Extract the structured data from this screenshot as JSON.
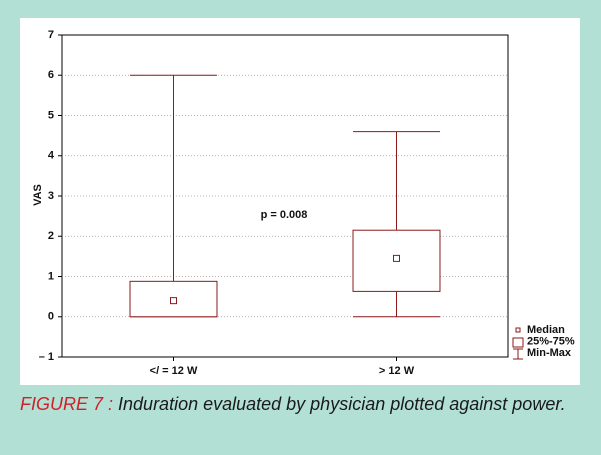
{
  "chart_data": {
    "type": "box",
    "y_label": "VAS",
    "annotation": "p = 0.008",
    "categories": [
      "</ = 12 W",
      "> 12 W"
    ],
    "min": [
      0,
      0
    ],
    "q1": [
      0,
      0.63
    ],
    "median": [
      0.4,
      1.45
    ],
    "q3": [
      0.88,
      2.15
    ],
    "max": [
      6,
      4.6
    ],
    "color": "#8b1a1a",
    "legend": [
      "Median",
      "25%-75%",
      "Min-Max"
    ],
    "ylim": [
      -1,
      7
    ],
    "yticks": [
      {
        "value": -1,
        "label": "– 1"
      },
      0,
      1,
      2,
      3,
      4,
      5,
      6,
      7
    ],
    "grid": true
  },
  "caption": {
    "label": "FIGURE 7 :",
    "text": "Induration evaluated by physician plotted against power."
  }
}
